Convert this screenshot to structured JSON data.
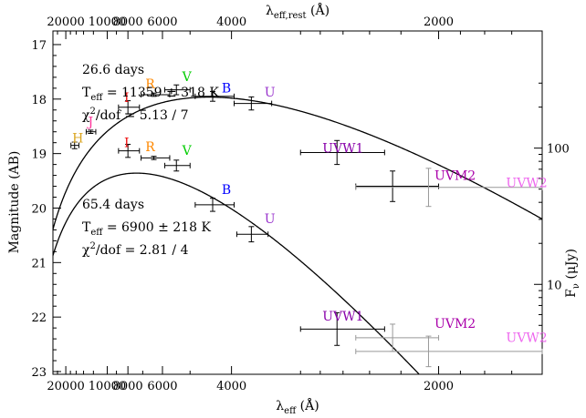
{
  "chart_data": {
    "type": "scatter",
    "xaxis_bottom": {
      "label_main": "λ",
      "label_sub": "eff",
      "label_unit": " (Å)",
      "scale": "reciprocal",
      "lim": [
        29000,
        1600
      ],
      "major_ticks": [
        20000,
        10000,
        8000,
        6000,
        4000,
        2000
      ],
      "tick_labels": [
        "20000",
        "10000",
        "8000",
        "6000",
        "4000",
        "2000"
      ]
    },
    "xaxis_top": {
      "label_main": "λ",
      "label_sub": "eff,rest",
      "label_unit": " (Å)",
      "major_ticks": [
        20000,
        10000,
        8000,
        6000,
        4000,
        2000
      ],
      "tick_labels": [
        "20000",
        "10000",
        "8000",
        "6000",
        "4000",
        "2000"
      ]
    },
    "yaxis_left": {
      "label": "Magnitude (AB)",
      "lim": [
        23.05,
        16.75
      ],
      "ticks": [
        17,
        18,
        19,
        20,
        21,
        22,
        23
      ],
      "tick_labels": [
        "17",
        "18",
        "19",
        "20",
        "21",
        "22",
        "23"
      ]
    },
    "yaxis_right": {
      "label_main": "F",
      "label_sub": "ν",
      "label_unit": " (μJy)",
      "scale": "log",
      "ticks": [
        100,
        10
      ],
      "tick_labels": [
        "100",
        "10"
      ]
    },
    "colors": {
      "H": "#daa520",
      "J": "#ff3399",
      "I": "#ee1111",
      "R": "#ff8800",
      "V": "#00cc00",
      "B": "#0000ff",
      "U": "#9933cc",
      "UVW1": "#8800aa",
      "UVM2": "#aa00aa",
      "UVW2": "#ee66ee",
      "upper_limit": "#999999",
      "fit": "#000000",
      "marker": "#000000"
    },
    "epochs": [
      {
        "label": "26.6 days",
        "teff_main": "T",
        "teff_sub": "eff",
        "teff_value": " = 11359 ± 318 K",
        "chi_main": "χ",
        "chi_sup": "2",
        "chi_value": "/dof = 5.13 / 7",
        "fit_temperature_K": 11359,
        "points": [
          {
            "filter": "H",
            "wave": 16500,
            "werr": 1300,
            "mag": 18.85,
            "merr": 0.06
          },
          {
            "filter": "J",
            "wave": 12500,
            "werr": 900,
            "mag": 18.6,
            "merr": 0.03
          },
          {
            "filter": "I",
            "wave": 8000,
            "werr": 800,
            "mag": 18.15,
            "merr": 0.12
          },
          {
            "filter": "R",
            "wave": 6400,
            "werr": 700,
            "mag": 17.92,
            "merr": 0.03
          },
          {
            "filter": "V",
            "wave": 5450,
            "werr": 450,
            "mag": 17.83,
            "merr": 0.09
          },
          {
            "filter": "B",
            "wave": 4400,
            "werr": 450,
            "mag": 17.95,
            "merr": 0.09
          },
          {
            "filter": "U",
            "wave": 3650,
            "werr": 300,
            "mag": 18.08,
            "merr": 0.12
          },
          {
            "filter": "UVW1",
            "wave": 2650,
            "werr": 350,
            "mag": 18.98,
            "merr": 0.22
          },
          {
            "filter": "UVM2",
            "wave": 2250,
            "werr": 250,
            "mag": 19.6,
            "merr": 0.28
          },
          {
            "filter": "UVW2",
            "wave": 2050,
            "werr": 450,
            "mag": 19.62,
            "merr": 0.35,
            "limit": true
          }
        ],
        "labels": [
          {
            "text": "H",
            "filter": "H",
            "wave": 17300,
            "mag": 18.8
          },
          {
            "text": "J",
            "filter": "J",
            "wave": 13000,
            "mag": 18.5
          },
          {
            "text": "I",
            "filter": "I",
            "wave": 8300,
            "mag": 18.05
          },
          {
            "text": "R",
            "filter": "R",
            "wave": 6850,
            "mag": 17.8
          },
          {
            "text": "V",
            "filter": "V",
            "wave": 5250,
            "mag": 17.67
          },
          {
            "text": "B",
            "filter": "B",
            "wave": 4200,
            "mag": 17.88
          },
          {
            "text": "U",
            "filter": "U",
            "wave": 3450,
            "mag": 17.95
          },
          {
            "text": "UVW1",
            "filter": "UVW1",
            "wave": 2780,
            "mag": 18.98
          },
          {
            "text": "UVM2",
            "filter": "UVM2",
            "wave": 2020,
            "mag": 19.48
          },
          {
            "text": "UVW2",
            "filter": "UVW2",
            "wave": 1720,
            "mag": 19.62
          }
        ]
      },
      {
        "label": "65.4 days",
        "teff_main": "T",
        "teff_sub": "eff",
        "teff_value": " = 6900 ± 218 K",
        "chi_main": "χ",
        "chi_sup": "2",
        "chi_value": "/dof = 2.81 / 4",
        "fit_temperature_K": 6900,
        "points": [
          {
            "filter": "I",
            "wave": 8000,
            "werr": 800,
            "mag": 18.95,
            "merr": 0.12
          },
          {
            "filter": "R",
            "wave": 6400,
            "werr": 700,
            "mag": 19.08,
            "merr": 0.03
          },
          {
            "filter": "V",
            "wave": 5450,
            "werr": 450,
            "mag": 19.22,
            "merr": 0.1
          },
          {
            "filter": "B",
            "wave": 4400,
            "werr": 450,
            "mag": 19.94,
            "merr": 0.12
          },
          {
            "filter": "U",
            "wave": 3650,
            "werr": 250,
            "mag": 20.48,
            "merr": 0.14
          },
          {
            "filter": "UVW1",
            "wave": 2650,
            "werr": 350,
            "mag": 22.22,
            "merr": 0.3
          },
          {
            "filter": "UVM2",
            "wave": 2250,
            "werr": 250,
            "mag": 22.38,
            "merr": 0.25,
            "limit": true
          },
          {
            "filter": "UVW2",
            "wave": 2050,
            "werr": 450,
            "mag": 22.63,
            "merr": 0.28,
            "limit": true
          }
        ],
        "labels": [
          {
            "text": "I",
            "filter": "I",
            "wave": 8300,
            "mag": 18.88
          },
          {
            "text": "R",
            "filter": "R",
            "wave": 6850,
            "mag": 18.96
          },
          {
            "text": "V",
            "filter": "V",
            "wave": 5250,
            "mag": 19.02
          },
          {
            "text": "B",
            "filter": "B",
            "wave": 4200,
            "mag": 19.74
          },
          {
            "text": "U",
            "filter": "U",
            "wave": 3450,
            "mag": 20.28
          },
          {
            "text": "UVW1",
            "filter": "UVW1",
            "wave": 2780,
            "mag": 22.06
          },
          {
            "text": "UVM2",
            "filter": "UVM2",
            "wave": 2020,
            "mag": 22.2
          },
          {
            "text": "UVW2",
            "filter": "UVW2",
            "wave": 1720,
            "mag": 22.46
          }
        ]
      }
    ]
  }
}
